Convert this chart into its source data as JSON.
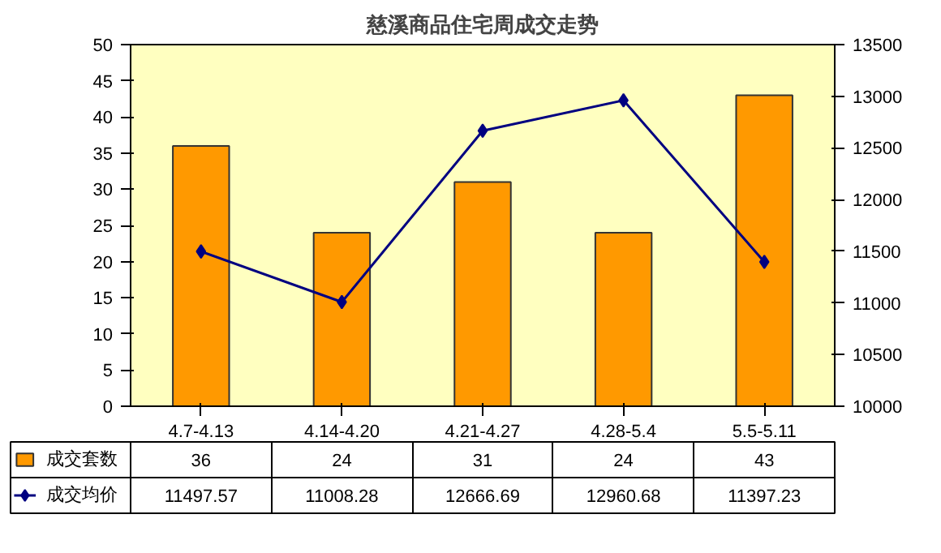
{
  "chart_data": {
    "type": "bar",
    "title": "慈溪商品住宅周成交走势",
    "categories": [
      "4.7-4.13",
      "4.14-4.20",
      "4.21-4.27",
      "4.28-5.4",
      "5.5-5.11"
    ],
    "series": [
      {
        "name": "成交套数",
        "color": "#ff9900",
        "values": [
          36,
          24,
          31,
          24,
          43
        ]
      },
      {
        "name": "成交均价",
        "type": "line",
        "axis": "y2",
        "color": "#000080",
        "marker": "diamond",
        "values": [
          11497.57,
          11008.28,
          12666.69,
          12960.68,
          11397.23
        ]
      }
    ],
    "ylim": [
      0,
      50
    ],
    "yticks": [
      0,
      5,
      10,
      15,
      20,
      25,
      30,
      35,
      40,
      45,
      50
    ],
    "y2lim": [
      10000,
      13500
    ],
    "y2ticks": [
      10000,
      10500,
      11000,
      11500,
      12000,
      12500,
      13000,
      13500
    ],
    "data_labels": true,
    "legend": "bottom left",
    "grid": false
  }
}
